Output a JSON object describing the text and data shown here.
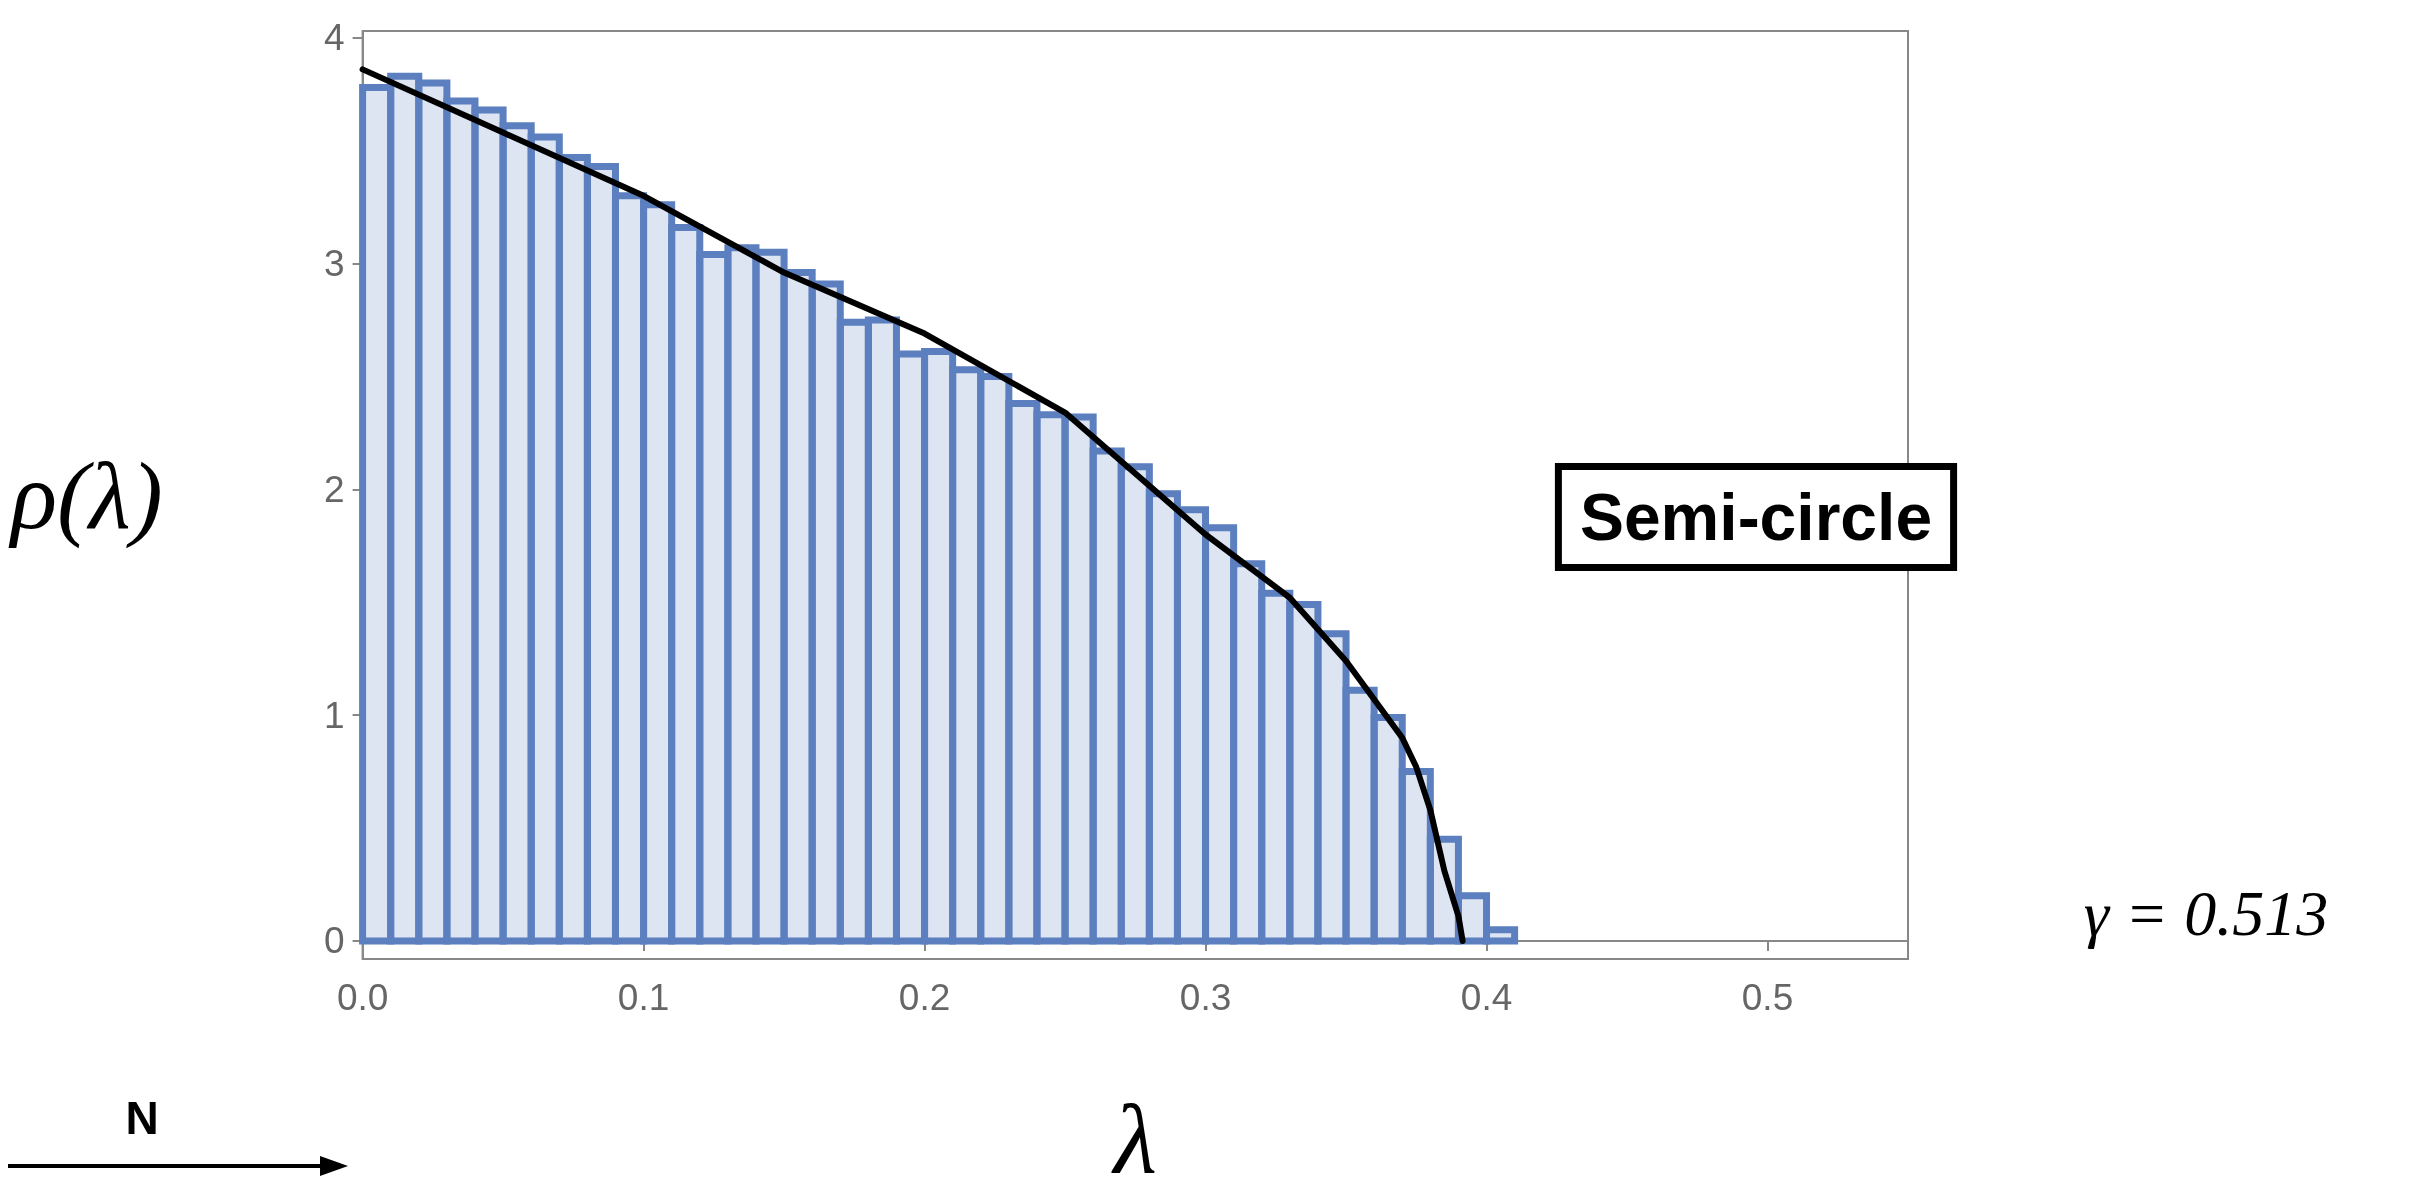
{
  "chart_data": {
    "type": "histogram",
    "xlabel": "λ",
    "ylabel": "ρ(λ)",
    "annotations": [
      "Semi-circle",
      "γ = 0.513",
      "N"
    ],
    "series": [
      {
        "color": "#5b7fbf",
        "bins": [
          0,
          0.01,
          0.02,
          0.03,
          0.04,
          0.05,
          0.06,
          0.07,
          0.08,
          0.09,
          0.1,
          0.11,
          0.12,
          0.13,
          0.14,
          0.15,
          0.16,
          0.17,
          0.18,
          0.19,
          0.2,
          0.21,
          0.22,
          0.23,
          0.24,
          0.25,
          0.26,
          0.27,
          0.28,
          0.29,
          0.3,
          0.31,
          0.32,
          0.33,
          0.34,
          0.35,
          0.36,
          0.37,
          0.38,
          0.39,
          0.4,
          0.41
        ],
        "values": [
          3.78,
          3.83,
          3.8,
          3.72,
          3.68,
          3.61,
          3.56,
          3.47,
          3.43,
          3.3,
          3.26,
          3.16,
          3.04,
          3.07,
          3.05,
          2.96,
          2.91,
          2.74,
          2.75,
          2.6,
          2.61,
          2.53,
          2.5,
          2.38,
          2.33,
          2.32,
          2.17,
          2.1,
          1.98,
          1.91,
          1.83,
          1.67,
          1.54,
          1.49,
          1.36,
          1.11,
          0.99,
          0.75,
          0.45,
          0.2,
          0.05
        ]
      },
      {
        "type": "line",
        "color": "#000000",
        "x": [
          0,
          0.05,
          0.1,
          0.15,
          0.2,
          0.25,
          0.3,
          0.33,
          0.35,
          0.37,
          0.375,
          0.38,
          0.385,
          0.39,
          0.3915
        ],
        "values": [
          3.86,
          3.58,
          3.3,
          2.96,
          2.69,
          2.34,
          1.8,
          1.52,
          1.24,
          0.9,
          0.77,
          0.58,
          0.31,
          0.11,
          0
        ]
      }
    ],
    "xlim": [
      0,
      0.55
    ],
    "xticks": [
      {
        "value": 0,
        "label": "0.0"
      },
      0.1,
      0.2,
      0.3,
      0.4,
      0.5
    ],
    "ylim": [
      -0.08,
      4.03
    ],
    "yticks": [
      0,
      1,
      2,
      3,
      4
    ],
    "marker": "none",
    "line_style": "solid"
  }
}
